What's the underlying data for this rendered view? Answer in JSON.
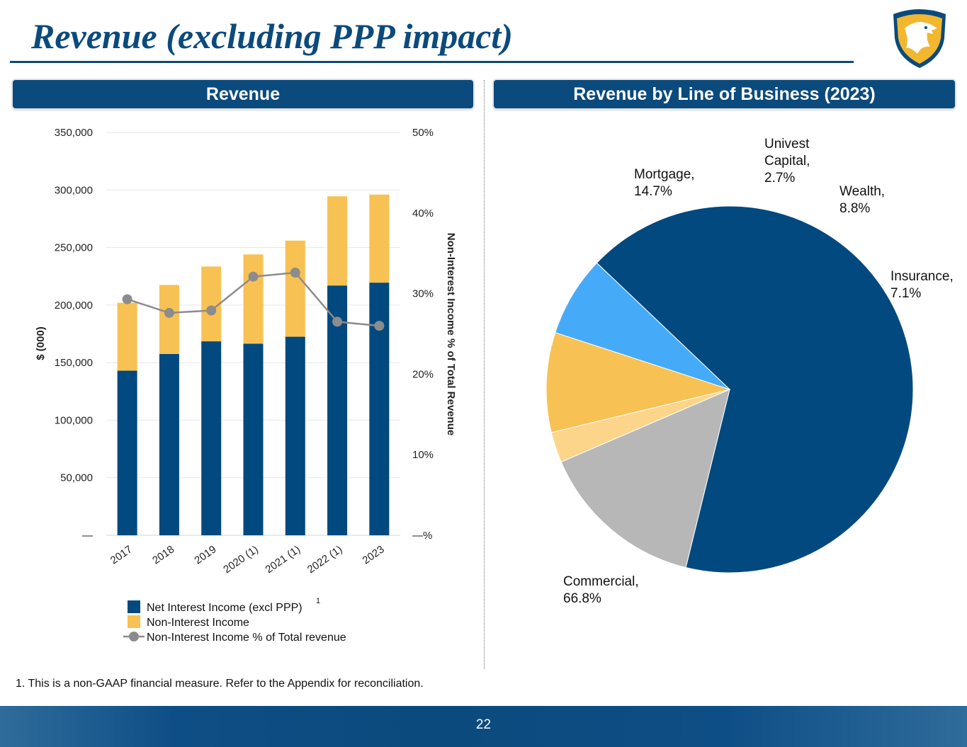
{
  "title": "Revenue (excluding PPP impact)",
  "page_number": "22",
  "footnote": "1. This is a non-GAAP financial measure. Refer to the Appendix for reconciliation.",
  "panels": {
    "left_title": "Revenue",
    "right_title": "Revenue by Line of Business (2023)"
  },
  "colors": {
    "brand_navy": "#0b4a7c",
    "net_interest": "#01497f",
    "non_interest": "#f8c153",
    "pct_line": "#8c8c8c",
    "mortgage": "#b7b7b7",
    "univest_capital": "#fdd58a",
    "wealth": "#f8c153",
    "insurance": "#45abf8",
    "commercial": "#01497f"
  },
  "chart_data": [
    {
      "type": "bar",
      "stacked": true,
      "title": "Revenue",
      "categories": [
        "2017",
        "2018",
        "2019",
        "2020 (1)",
        "2021 (1)",
        "2022 (1)",
        "2023"
      ],
      "series": [
        {
          "name": "Net Interest Income (excl PPP)",
          "superscript": "1",
          "values": [
            143000,
            157500,
            168500,
            166500,
            172500,
            217000,
            219500
          ]
        },
        {
          "name": "Non-Interest Income",
          "values": [
            59000,
            60000,
            65000,
            77500,
            83500,
            77500,
            76500
          ]
        }
      ],
      "line_series": {
        "name": "Non-Interest Income % of Total revenue",
        "axis": "right",
        "values": [
          29.3,
          27.6,
          27.9,
          32.1,
          32.6,
          26.5,
          26.0
        ]
      },
      "ylabel": "$ (000)",
      "ylim": [
        0,
        350000
      ],
      "yticks": [
        "—",
        "50,000",
        "100,000",
        "150,000",
        "200,000",
        "250,000",
        "300,000",
        "350,000"
      ],
      "y2label": "Non-Interest Income % of Total Revenue",
      "y2lim": [
        0,
        50
      ],
      "y2ticks": [
        "—%",
        "10%",
        "20%",
        "30%",
        "40%",
        "50%"
      ],
      "grid": true,
      "legend": "bottom"
    },
    {
      "type": "pie",
      "title": "Revenue by Line of Business (2023)",
      "slices": [
        {
          "name": "Commercial",
          "label_line1": "Commercial,",
          "label_line2": "66.8%",
          "value": 66.8
        },
        {
          "name": "Mortgage",
          "label_line1": "Mortgage,",
          "label_line2": "14.7%",
          "value": 14.7
        },
        {
          "name": "Univest Capital",
          "label_line1": "Univest",
          "label_line2": "Capital,",
          "label_line3": "2.7%",
          "value": 2.7
        },
        {
          "name": "Wealth",
          "label_line1": "Wealth,",
          "label_line2": "8.8%",
          "value": 8.8
        },
        {
          "name": "Insurance",
          "label_line1": "Insurance,",
          "label_line2": "7.1%",
          "value": 7.1
        }
      ]
    }
  ]
}
